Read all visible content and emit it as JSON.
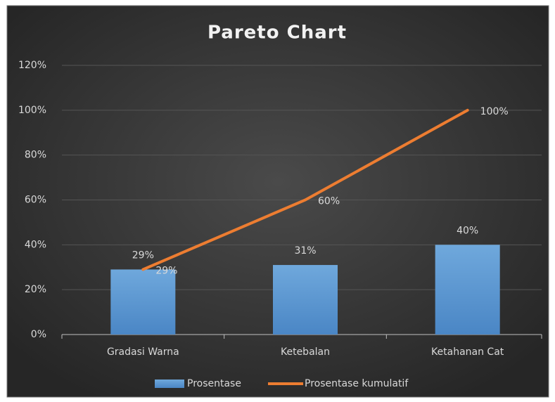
{
  "chart_data": {
    "type": "bar",
    "title": "Pareto Chart",
    "categories": [
      "Gradasi Warna",
      "Ketebalan",
      "Ketahanan Cat"
    ],
    "series": [
      {
        "name": "Prosentase",
        "type": "bar",
        "color": "#5b9bd5",
        "values": [
          29,
          31,
          40
        ],
        "value_labels": [
          "29%",
          "31%",
          "40%"
        ]
      },
      {
        "name": "Prosentase kumulatif",
        "type": "line",
        "color": "#ed7d31",
        "values": [
          29,
          60,
          100
        ],
        "value_labels": [
          "29%",
          "60%",
          "100%"
        ]
      }
    ],
    "ylim": [
      0,
      120
    ],
    "yticks": [
      {
        "value": 0,
        "label": "0%"
      },
      {
        "value": 20,
        "label": "20%"
      },
      {
        "value": 40,
        "label": "40%"
      },
      {
        "value": 60,
        "label": "60%"
      },
      {
        "value": 80,
        "label": "80%"
      },
      {
        "value": 100,
        "label": "100%"
      },
      {
        "value": 120,
        "label": "120%"
      }
    ],
    "grid": true,
    "legend": "bottom"
  }
}
